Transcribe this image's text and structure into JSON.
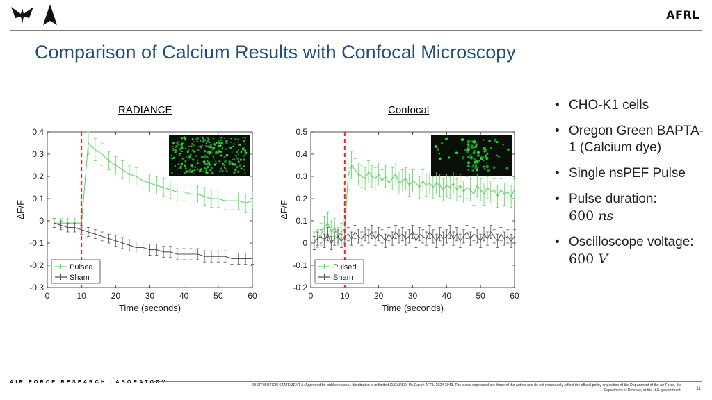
{
  "header": {
    "title": "Comparison of Calcium Results with Confocal Microscopy",
    "brand": "AFRL"
  },
  "footer": {
    "lab_name": "AIR FORCE RESEARCH LABORATORY",
    "statement": "DISTRIBUTION STATEMENT A: Approved for public release;. distribution is unlimited CLEARED: PA Case# AFRL-2024-3043. The views expressed are those of the author and do not necessarily reflect the official policy or position of the Department of the Air Force, the Department of Defense, or the U.S. government.",
    "page_number": "11"
  },
  "bullets": {
    "item1": "CHO-K1 cells",
    "item2": "Oregon Green BAPTA-1 (Calcium dye)",
    "item3": "Single nsPEF Pulse",
    "item4_text": "Pulse duration:",
    "item4_value": "600",
    "item4_unit": "ns",
    "item5_text": "Oscilloscope voltage:",
    "item5_value": "600",
    "item5_unit": "V"
  },
  "colors": {
    "pulsed": "#5fd35f",
    "sham": "#555555",
    "marker": "#e8262e",
    "title": "#1f4e79"
  },
  "chart_data": [
    {
      "type": "line",
      "title": "RADIANCE",
      "xlabel": "Time (seconds)",
      "ylabel": "ΔF/F",
      "xlim": [
        0,
        60
      ],
      "ylim": [
        -0.3,
        0.4
      ],
      "xticks": [
        0,
        10,
        20,
        30,
        40,
        50,
        60
      ],
      "yticks": [
        -0.3,
        -0.2,
        -0.1,
        0,
        0.1,
        0.2,
        0.3,
        0.4
      ],
      "ytick_labels": [
        "-0.3",
        "-0.2",
        "-0.1",
        "0",
        "0.1",
        "0.2",
        "0.3",
        "0.4"
      ],
      "marker_x": 10,
      "legend_position": "bottom-left",
      "inset": "confocal-style green fluorescence image (top-right)",
      "series": [
        {
          "name": "Pulsed",
          "x": [
            2,
            4,
            6,
            8,
            10,
            12,
            14,
            16,
            18,
            20,
            22,
            24,
            26,
            28,
            30,
            32,
            34,
            36,
            38,
            40,
            42,
            44,
            46,
            48,
            50,
            52,
            54,
            56,
            58,
            60
          ],
          "y": [
            -0.01,
            -0.01,
            -0.01,
            -0.01,
            -0.01,
            0.35,
            0.32,
            0.3,
            0.27,
            0.25,
            0.23,
            0.21,
            0.2,
            0.18,
            0.17,
            0.16,
            0.15,
            0.14,
            0.13,
            0.13,
            0.12,
            0.12,
            0.11,
            0.1,
            0.1,
            0.09,
            0.09,
            0.09,
            0.08,
            0.09
          ],
          "err": [
            0.02,
            0.02,
            0.02,
            0.02,
            0.02,
            0.05,
            0.05,
            0.05,
            0.04,
            0.04,
            0.04,
            0.04,
            0.04,
            0.04,
            0.04,
            0.04,
            0.04,
            0.04,
            0.04,
            0.04,
            0.04,
            0.04,
            0.04,
            0.04,
            0.04,
            0.04,
            0.04,
            0.04,
            0.04,
            0.04
          ]
        },
        {
          "name": "Sham",
          "x": [
            2,
            4,
            6,
            8,
            10,
            12,
            14,
            16,
            18,
            20,
            22,
            24,
            26,
            28,
            30,
            32,
            34,
            36,
            38,
            40,
            42,
            44,
            46,
            48,
            50,
            52,
            54,
            56,
            58,
            60
          ],
          "y": [
            -0.01,
            -0.02,
            -0.03,
            -0.03,
            -0.04,
            -0.05,
            -0.06,
            -0.07,
            -0.08,
            -0.09,
            -0.1,
            -0.11,
            -0.12,
            -0.12,
            -0.13,
            -0.13,
            -0.14,
            -0.14,
            -0.15,
            -0.15,
            -0.15,
            -0.15,
            -0.16,
            -0.16,
            -0.16,
            -0.16,
            -0.17,
            -0.17,
            -0.17,
            -0.17
          ],
          "err": [
            0.02,
            0.02,
            0.02,
            0.02,
            0.02,
            0.02,
            0.02,
            0.02,
            0.02,
            0.025,
            0.025,
            0.025,
            0.025,
            0.025,
            0.025,
            0.025,
            0.025,
            0.025,
            0.025,
            0.025,
            0.025,
            0.025,
            0.025,
            0.025,
            0.025,
            0.025,
            0.025,
            0.025,
            0.025,
            0.025
          ]
        }
      ]
    },
    {
      "type": "line",
      "title": "Confocal",
      "xlabel": "Time (seconds)",
      "ylabel": "ΔF/F",
      "xlim": [
        0,
        60
      ],
      "ylim": [
        -0.2,
        0.5
      ],
      "xticks": [
        0,
        10,
        20,
        30,
        40,
        50,
        60
      ],
      "yticks": [
        -0.2,
        -0.1,
        0,
        0.1,
        0.2,
        0.3,
        0.4,
        0.5
      ],
      "ytick_labels": [
        "-0.2",
        "-0.1",
        "0",
        "0.1",
        "0.2",
        "0.3",
        "0.4",
        "0.5"
      ],
      "marker_x": 10,
      "legend_position": "bottom-left",
      "inset": "confocal green fluorescence image (top-right)",
      "series": [
        {
          "name": "Pulsed",
          "x": [
            1,
            2,
            3,
            4,
            5,
            6,
            7,
            8,
            9,
            10,
            11,
            12,
            13,
            14,
            15,
            16,
            17,
            18,
            19,
            20,
            21,
            22,
            23,
            24,
            25,
            26,
            27,
            28,
            29,
            30,
            31,
            32,
            33,
            34,
            35,
            36,
            37,
            38,
            39,
            40,
            41,
            42,
            43,
            44,
            45,
            46,
            47,
            48,
            49,
            50,
            51,
            52,
            53,
            54,
            55,
            56,
            57,
            58,
            59,
            60
          ],
          "y": [
            0.01,
            0.02,
            0.04,
            0.07,
            0.09,
            0.05,
            0.07,
            0.03,
            0.05,
            0.06,
            0.3,
            0.35,
            0.33,
            0.31,
            0.3,
            0.29,
            0.32,
            0.3,
            0.29,
            0.31,
            0.28,
            0.3,
            0.27,
            0.29,
            0.31,
            0.27,
            0.28,
            0.29,
            0.26,
            0.28,
            0.27,
            0.25,
            0.28,
            0.26,
            0.27,
            0.25,
            0.27,
            0.26,
            0.24,
            0.26,
            0.25,
            0.27,
            0.24,
            0.26,
            0.23,
            0.25,
            0.24,
            0.22,
            0.26,
            0.24,
            0.22,
            0.25,
            0.23,
            0.24,
            0.21,
            0.24,
            0.22,
            0.23,
            0.21,
            0.24
          ],
          "err": [
            0.04,
            0.04,
            0.05,
            0.05,
            0.05,
            0.05,
            0.04,
            0.04,
            0.04,
            0.04,
            0.06,
            0.06,
            0.05,
            0.05,
            0.05,
            0.05,
            0.05,
            0.05,
            0.05,
            0.05,
            0.05,
            0.05,
            0.05,
            0.05,
            0.05,
            0.05,
            0.05,
            0.05,
            0.05,
            0.05,
            0.05,
            0.05,
            0.05,
            0.05,
            0.05,
            0.05,
            0.05,
            0.05,
            0.05,
            0.05,
            0.05,
            0.05,
            0.05,
            0.05,
            0.05,
            0.05,
            0.05,
            0.05,
            0.05,
            0.05,
            0.05,
            0.05,
            0.05,
            0.05,
            0.05,
            0.05,
            0.05,
            0.05,
            0.05,
            0.05
          ]
        },
        {
          "name": "Sham",
          "x": [
            1,
            2,
            3,
            4,
            5,
            6,
            7,
            8,
            9,
            10,
            11,
            12,
            13,
            14,
            15,
            16,
            17,
            18,
            19,
            20,
            21,
            22,
            23,
            24,
            25,
            26,
            27,
            28,
            29,
            30,
            31,
            32,
            33,
            34,
            35,
            36,
            37,
            38,
            39,
            40,
            41,
            42,
            43,
            44,
            45,
            46,
            47,
            48,
            49,
            50,
            51,
            52,
            53,
            54,
            55,
            56,
            57,
            58,
            59,
            60
          ],
          "y": [
            0.0,
            0.02,
            0.03,
            0.01,
            0.04,
            0.0,
            0.02,
            0.03,
            0.01,
            0.03,
            0.04,
            0.02,
            0.05,
            0.03,
            0.02,
            0.04,
            0.03,
            0.05,
            0.02,
            0.04,
            0.03,
            0.01,
            0.04,
            0.02,
            0.05,
            0.03,
            0.04,
            0.02,
            0.03,
            0.05,
            0.01,
            0.04,
            0.03,
            0.02,
            0.05,
            0.03,
            0.01,
            0.04,
            0.02,
            0.03,
            0.05,
            0.02,
            0.04,
            0.01,
            0.03,
            0.05,
            0.02,
            0.04,
            0.03,
            0.01,
            0.04,
            0.02,
            0.05,
            0.03,
            0.01,
            0.04,
            0.02,
            0.03,
            0.01,
            0.03
          ],
          "err": [
            0.03,
            0.03,
            0.03,
            0.03,
            0.03,
            0.03,
            0.03,
            0.03,
            0.03,
            0.03,
            0.03,
            0.03,
            0.03,
            0.03,
            0.03,
            0.03,
            0.03,
            0.03,
            0.03,
            0.03,
            0.03,
            0.03,
            0.03,
            0.03,
            0.03,
            0.03,
            0.03,
            0.03,
            0.03,
            0.03,
            0.03,
            0.03,
            0.03,
            0.03,
            0.03,
            0.03,
            0.03,
            0.03,
            0.03,
            0.03,
            0.03,
            0.03,
            0.03,
            0.03,
            0.03,
            0.03,
            0.03,
            0.03,
            0.03,
            0.03,
            0.03,
            0.03,
            0.03,
            0.03,
            0.03,
            0.03,
            0.03,
            0.03,
            0.03,
            0.03
          ]
        }
      ]
    }
  ]
}
